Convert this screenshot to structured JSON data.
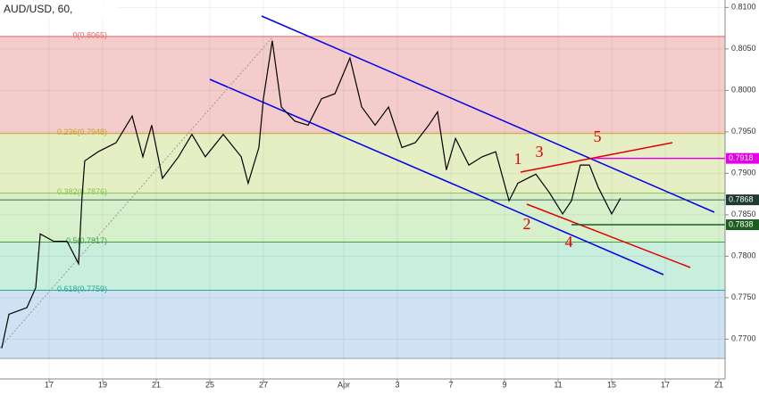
{
  "chart_data": {
    "type": "line",
    "title": "AUD/USD, 60,",
    "xlim": [
      -1.833,
      25.233
    ],
    "ylim": [
      0.7652,
      0.8109
    ],
    "xticks": [
      {
        "value": 0,
        "label": "17"
      },
      {
        "value": 2,
        "label": "19"
      },
      {
        "value": 4,
        "label": "21"
      },
      {
        "value": 6,
        "label": "25"
      },
      {
        "value": 8,
        "label": "27"
      },
      {
        "value": 11,
        "label": "Apr"
      },
      {
        "value": 13,
        "label": "3"
      },
      {
        "value": 15,
        "label": "7"
      },
      {
        "value": 17,
        "label": "9"
      },
      {
        "value": 19,
        "label": "11"
      },
      {
        "value": 21,
        "label": "15"
      },
      {
        "value": 23,
        "label": "17"
      },
      {
        "value": 25,
        "label": "21"
      }
    ],
    "yticks": [
      {
        "value": 0.77,
        "label": "0.7700"
      },
      {
        "value": 0.775,
        "label": "0.7750"
      },
      {
        "value": 0.78,
        "label": "0.7800"
      },
      {
        "value": 0.785,
        "label": "0.7850"
      },
      {
        "value": 0.79,
        "label": "0.7900"
      },
      {
        "value": 0.795,
        "label": "0.7950"
      },
      {
        "value": 0.8,
        "label": "0.8000"
      },
      {
        "value": 0.805,
        "label": "0.8050"
      },
      {
        "value": 0.81,
        "label": "0.8100"
      }
    ],
    "series": [
      {
        "name": "AUD/USD",
        "color": "#000000",
        "x": [
          -1.77,
          -1.5,
          -0.83,
          -0.5,
          -0.33,
          0.17,
          0.67,
          1.1,
          1.23,
          1.33,
          1.83,
          2.5,
          3.1,
          3.5,
          3.83,
          4.23,
          4.83,
          5.33,
          5.83,
          6.5,
          7.17,
          7.43,
          7.83,
          8,
          8.33,
          8.67,
          9.17,
          9.67,
          10.17,
          10.67,
          11.23,
          11.67,
          12.17,
          12.67,
          13.17,
          13.67,
          14.17,
          14.5,
          14.83,
          15.17,
          15.67,
          16.17,
          16.67,
          17.17,
          17.5,
          18.17,
          18.67,
          19.17,
          19.5,
          19.83,
          20.17,
          20.5,
          21,
          21.33
        ],
        "values": [
          0.7689,
          0.773,
          0.7738,
          0.7762,
          0.7827,
          0.7818,
          0.7818,
          0.7791,
          0.7872,
          0.7915,
          0.7926,
          0.7937,
          0.7969,
          0.792,
          0.7958,
          0.7894,
          0.792,
          0.7947,
          0.792,
          0.7947,
          0.792,
          0.7888,
          0.7931,
          0.799,
          0.806,
          0.798,
          0.7963,
          0.7958,
          0.799,
          0.7996,
          0.8039,
          0.798,
          0.7958,
          0.798,
          0.7931,
          0.7937,
          0.7958,
          0.7974,
          0.7904,
          0.7942,
          0.791,
          0.792,
          0.7926,
          0.7867,
          0.7888,
          0.7899,
          0.7877,
          0.7851,
          0.7867,
          0.791,
          0.791,
          0.7883,
          0.7851,
          0.787
        ]
      }
    ],
    "fib_levels": [
      {
        "value": 0.8065,
        "label": "0(0.8065)",
        "color": "#e06666",
        "fill": "#f4cccc"
      },
      {
        "value": 0.7948,
        "label": "0.236(0.7948)",
        "color": "#c9a227",
        "fill": "#e6efc4"
      },
      {
        "value": 0.7876,
        "label": "0.382(0.7876)",
        "color": "#8bc34a",
        "fill": "#d6f0cc"
      },
      {
        "value": 0.7817,
        "label": "0.5(0.7817)",
        "color": "#43a047",
        "fill": "#c8eedd"
      },
      {
        "value": 0.7759,
        "label": "0.618(0.7759)",
        "color": "#26a69a",
        "fill": "#cfe2f3"
      }
    ],
    "price_markers": [
      {
        "value": 0.7918,
        "label": "0.7918",
        "color": "#e600e6"
      },
      {
        "value": 0.7868,
        "label": "0.7868",
        "color": "#1f3a2e"
      },
      {
        "value": 0.7838,
        "label": "0.7838",
        "color": "#1b5e20"
      }
    ],
    "wave_labels": [
      "1",
      "2",
      "3",
      "4",
      "5"
    ]
  }
}
